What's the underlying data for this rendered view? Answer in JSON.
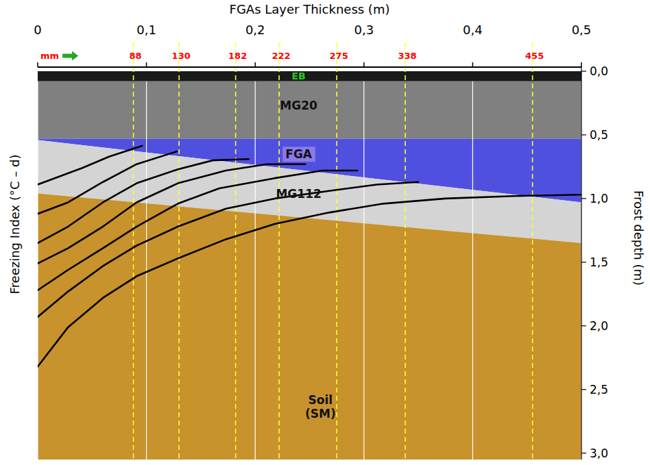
{
  "chart_data": {
    "type": "line",
    "x_label": "FGAs Layer Thickness (m)",
    "y_label": "Freezing Index (°C – d)",
    "y2_label": "Frost depth (m)",
    "xlim": [
      0,
      0.5
    ],
    "xticks": [
      0,
      {
        "value": 0.1,
        "label": "0,1"
      },
      {
        "value": 0.2,
        "label": "0,2"
      },
      {
        "value": 0.3,
        "label": "0,3"
      },
      {
        "value": 0.4,
        "label": "0,4"
      },
      {
        "value": 0.5,
        "label": "0,5"
      }
    ],
    "ylim": [
      0,
      3.05
    ],
    "yticks": [
      {
        "value": 0,
        "label": "0,0"
      },
      {
        "value": 0.5,
        "label": "0,5"
      },
      {
        "value": 1.0,
        "label": "1,0"
      },
      {
        "value": 1.5,
        "label": "1,5"
      },
      {
        "value": 2.0,
        "label": "2,0"
      },
      {
        "value": 2.5,
        "label": "2,5"
      },
      {
        "value": 3.0,
        "label": "3,0"
      }
    ],
    "grid": true,
    "layers": [
      {
        "label": "EB",
        "color": "#1a1a1a",
        "label_color": "#22cc22",
        "top": [
          0,
          0
        ],
        "bottom": [
          0.08,
          0.08
        ]
      },
      {
        "label": "MG20",
        "color": "#808080",
        "label_color": "#111111",
        "top": [
          0.08,
          0.08
        ],
        "bottom": [
          0.53,
          0.53
        ]
      },
      {
        "label": "FGA",
        "color": "#5050e0",
        "label_color": "#111111",
        "top": [
          0.53,
          0.53
        ],
        "bottom": [
          0.54,
          1.03
        ]
      },
      {
        "label": "MG112",
        "color": "#d4d4d4",
        "label_color": "#111111",
        "top": [
          0.54,
          1.03
        ],
        "bottom": [
          0.96,
          1.35
        ]
      },
      {
        "label": "Soil (SM)",
        "color": "#c8922c",
        "label_color": "#111111",
        "top": [
          0.96,
          1.35
        ],
        "bottom": [
          3.05,
          3.05
        ]
      }
    ],
    "thickness_marks": {
      "unit_label": "mm",
      "color": "#ffff33",
      "label_color": "#ff0000",
      "lines": [
        {
          "value": 0.088,
          "label": "88"
        },
        {
          "value": 0.13,
          "label": "130"
        },
        {
          "value": 0.182,
          "label": "182"
        },
        {
          "value": 0.222,
          "label": "222"
        },
        {
          "value": 0.275,
          "label": "275"
        },
        {
          "value": 0.338,
          "label": "338"
        },
        {
          "value": 0.455,
          "label": "455"
        }
      ]
    },
    "series": [
      {
        "color": "#000000",
        "x": [
          0,
          0.041,
          0.066,
          0.096
        ],
        "values": [
          0.89,
          0.76,
          0.67,
          0.586
        ]
      },
      {
        "color": "#000000",
        "x": [
          0,
          0.028,
          0.06,
          0.091,
          0.128
        ],
        "values": [
          1.12,
          1.03,
          0.87,
          0.73,
          0.63
        ]
      },
      {
        "color": "#000000",
        "x": [
          0,
          0.028,
          0.06,
          0.091,
          0.129,
          0.161,
          0.194
        ],
        "values": [
          1.35,
          1.22,
          1.03,
          0.88,
          0.77,
          0.7,
          0.69
        ]
      },
      {
        "color": "#000000",
        "x": [
          0,
          0.028,
          0.06,
          0.091,
          0.129,
          0.173,
          0.211,
          0.246
        ],
        "values": [
          1.51,
          1.39,
          1.22,
          1.03,
          0.88,
          0.78,
          0.73,
          0.73
        ]
      },
      {
        "color": "#000000",
        "x": [
          0,
          0.028,
          0.06,
          0.091,
          0.129,
          0.167,
          0.218,
          0.262,
          0.294
        ],
        "values": [
          1.72,
          1.56,
          1.39,
          1.22,
          1.04,
          0.92,
          0.84,
          0.78,
          0.78
        ]
      },
      {
        "color": "#000000",
        "x": [
          0,
          0.028,
          0.06,
          0.091,
          0.129,
          0.173,
          0.218,
          0.268,
          0.312,
          0.35
        ],
        "values": [
          1.93,
          1.73,
          1.53,
          1.37,
          1.22,
          1.08,
          1.0,
          0.94,
          0.89,
          0.87
        ]
      },
      {
        "color": "#000000",
        "x": [
          0,
          0.028,
          0.06,
          0.091,
          0.129,
          0.173,
          0.218,
          0.268,
          0.318,
          0.375,
          0.438,
          0.5
        ],
        "values": [
          2.32,
          2.01,
          1.78,
          1.61,
          1.47,
          1.32,
          1.2,
          1.11,
          1.04,
          1.0,
          0.98,
          0.97
        ]
      }
    ]
  }
}
